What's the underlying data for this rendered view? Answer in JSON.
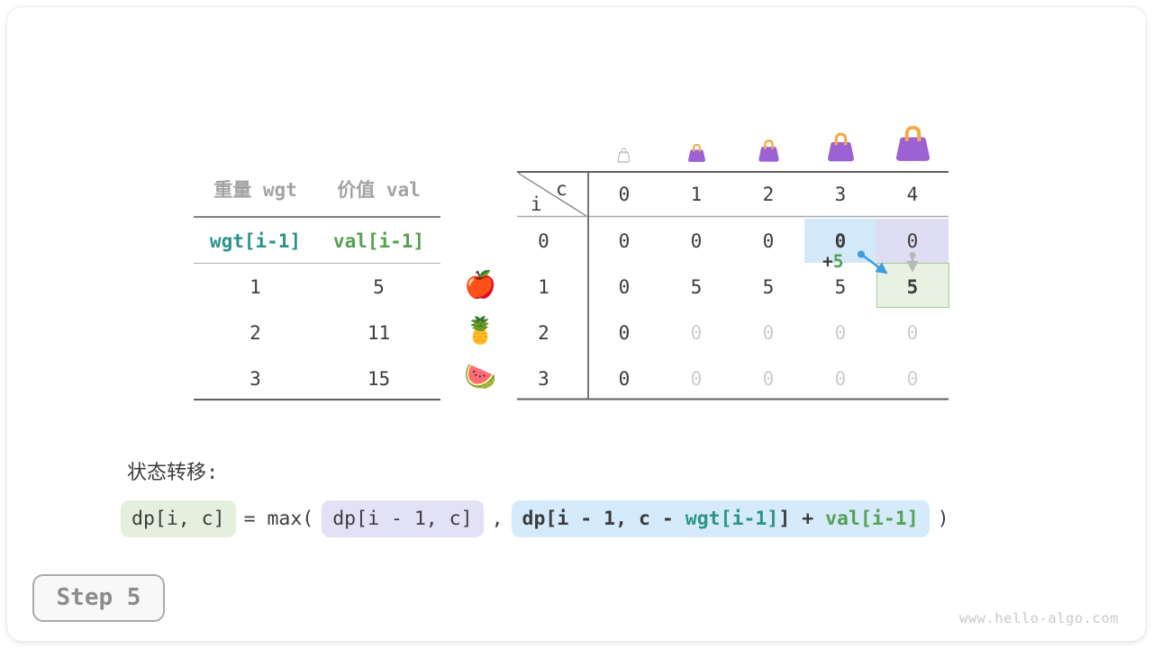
{
  "items_table": {
    "headers": [
      "重量 wgt",
      "价值 val"
    ],
    "index_row": [
      "wgt[i-1]",
      "val[i-1]"
    ],
    "rows": [
      [
        "1",
        "5"
      ],
      [
        "2",
        "11"
      ],
      [
        "3",
        "15"
      ]
    ],
    "fruits": [
      "🍎",
      "🍍",
      "🍉"
    ]
  },
  "dp_table": {
    "corner": {
      "top": "c",
      "bottom": "i"
    },
    "col_headers": [
      "0",
      "1",
      "2",
      "3",
      "4"
    ],
    "rows": [
      {
        "label": "0",
        "cells": [
          {
            "v": "0"
          },
          {
            "v": "0"
          },
          {
            "v": "0"
          },
          {
            "v": "0",
            "bold": true
          },
          {
            "v": "0"
          }
        ]
      },
      {
        "label": "1",
        "cells": [
          {
            "v": "0"
          },
          {
            "v": "5"
          },
          {
            "v": "5"
          },
          {
            "v": "5"
          },
          {
            "v": "5",
            "bold": true
          }
        ]
      },
      {
        "label": "2",
        "cells": [
          {
            "v": "0"
          },
          {
            "v": "0",
            "faint": true
          },
          {
            "v": "0",
            "faint": true
          },
          {
            "v": "0",
            "faint": true
          },
          {
            "v": "0",
            "faint": true
          }
        ]
      },
      {
        "label": "3",
        "cells": [
          {
            "v": "0"
          },
          {
            "v": "0",
            "faint": true
          },
          {
            "v": "0",
            "faint": true
          },
          {
            "v": "0",
            "faint": true
          },
          {
            "v": "0",
            "faint": true
          }
        ]
      }
    ],
    "highlights": [
      {
        "row": 0,
        "col": 3,
        "kind": "blue"
      },
      {
        "row": 0,
        "col": 4,
        "kind": "lavender"
      },
      {
        "row": 1,
        "col": 4,
        "kind": "green"
      }
    ],
    "annotation": {
      "plus": "+",
      "value": "5"
    },
    "bags": [
      {
        "capacity": 0,
        "style": "empty"
      },
      {
        "capacity": 1,
        "style": "filled"
      },
      {
        "capacity": 2,
        "style": "filled"
      },
      {
        "capacity": 3,
        "style": "filled"
      },
      {
        "capacity": 4,
        "style": "filled"
      }
    ]
  },
  "transition": {
    "label": "状态转移:",
    "lhs": "dp[i, c]",
    "eq_max": "= max(",
    "arg1": "dp[i - 1, c]",
    "comma": ",",
    "arg2_parts": [
      {
        "text": "dp[i - 1, c - ",
        "color": "dark"
      },
      {
        "text": "wgt[i-1]",
        "color": "teal"
      },
      {
        "text": "]",
        "color": "dark"
      },
      {
        "text": " + ",
        "color": "dark"
      },
      {
        "text": "val[i-1]",
        "color": "green"
      }
    ],
    "close": ")"
  },
  "footer": {
    "step_label": "Step 5",
    "watermark": "www.hello-algo.com"
  },
  "colors": {
    "dark": "#3c3c3c",
    "gray_header": "#a3a3a3",
    "faint": "#cccccc",
    "teal": "#2a948a",
    "green": "#55a153",
    "arrow_blue": "#3f9ce0",
    "arrow_gray": "#b8b8b8",
    "highlight_blue": "#d3e8f8",
    "highlight_lavender": "#dfddf4",
    "highlight_green_bg": "#e8f1e2",
    "highlight_green_border": "#a5c994",
    "box_green": "#e4efde",
    "box_lavender": "#e3e1f6",
    "box_blue": "#d5eafa",
    "bag_purple": "#9c62d3",
    "bag_handle": "#f2ab4a"
  }
}
